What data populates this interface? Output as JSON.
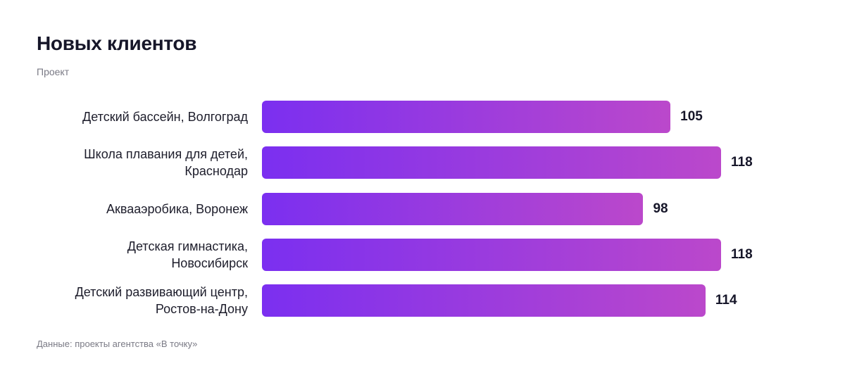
{
  "chart_data": {
    "type": "bar",
    "orientation": "horizontal",
    "title": "Новых клиентов",
    "subtitle": "Проект",
    "categories": [
      "Детский бассейн, Волгоград",
      "Школа плавания для детей,\nКраснодар",
      "Аквааэробика, Воронеж",
      "Детская гимнастика,\nНовосибирск",
      "Детский развивающий центр,\nРостов-на-Дону"
    ],
    "values": [
      105,
      118,
      98,
      118,
      114
    ],
    "color": [
      "#7b2ff0",
      "#bb48cb"
    ],
    "source": "Данные: проекты агентства «В точку»"
  }
}
